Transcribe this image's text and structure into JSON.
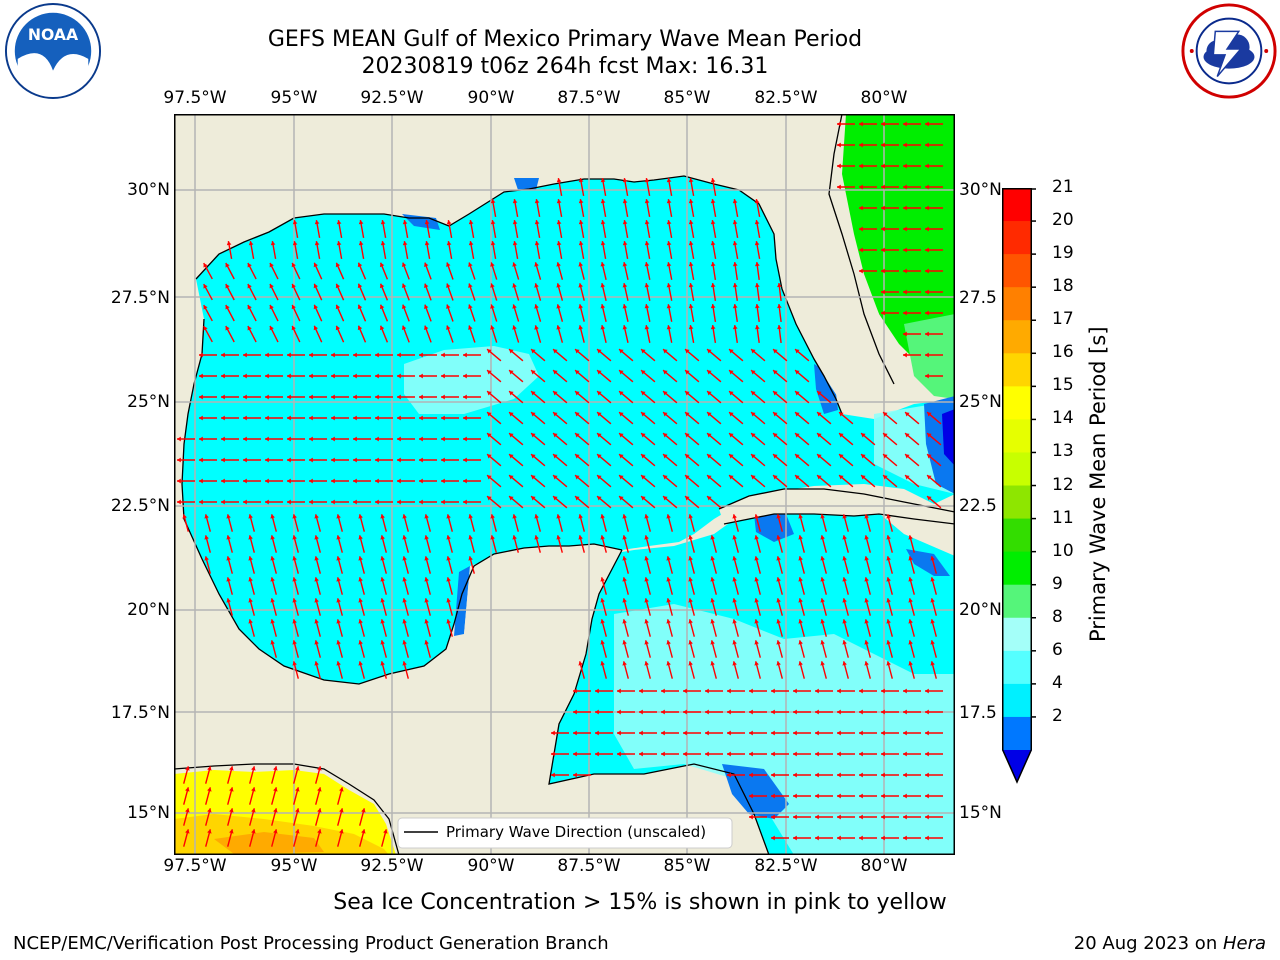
{
  "title_line1": "GEFS MEAN Gulf of Mexico Primary Wave Mean Period",
  "title_line2": "20230819 t06z 264h fcst   Max: 16.31",
  "logo_left": {
    "text": "NOAA",
    "icon": "noaa-logo-icon"
  },
  "logo_right": {
    "icon": "national-weather-service-logo-icon"
  },
  "lon_labels": [
    "97.5°W",
    "95°W",
    "92.5°W",
    "90°W",
    "87.5°W",
    "85°W",
    "82.5°W",
    "80°W"
  ],
  "lat_labels_left": [
    "30°N",
    "27.5°N",
    "25°N",
    "22.5°N",
    "20°N",
    "17.5°N",
    "15°N"
  ],
  "lat_labels_right": [
    "30°N",
    "27.5",
    "25°N",
    "22.5",
    "20°N",
    "17.5",
    "15°N"
  ],
  "legend_label": "Primary Wave Direction (unscaled)",
  "colorbar": {
    "label": "Primary Wave Mean Period [s]",
    "ticks": [
      "21",
      "20",
      "19",
      "18",
      "17",
      "16",
      "15",
      "14",
      "13",
      "12",
      "11",
      "10",
      "9",
      "8",
      "6",
      "4",
      "2"
    ],
    "colors": [
      "#ff0000",
      "#ff2a00",
      "#ff5500",
      "#ff8000",
      "#ffaa00",
      "#ffd500",
      "#ffff00",
      "#e6ff00",
      "#c8ff00",
      "#8ee600",
      "#33dd00",
      "#00ee00",
      "#55f57a",
      "#a4fff9",
      "#55ffff",
      "#00f0ff",
      "#0078ff"
    ],
    "under_color": "#0000e6"
  },
  "colors": {
    "land": "#eeecda",
    "ocean_main": "#00ffff",
    "ocean_light": "#8ffff9",
    "ocean_dark": "#0a78f0",
    "green": "#00ee00",
    "yellow": "#ffff00",
    "arrow": "#ff0000"
  },
  "note": "Sea Ice Concentration > 15% is shown in pink to yellow",
  "footer_left": "NCEP/EMC/Verification Post Processing Product Generation Branch",
  "footer_right_date": "20 Aug 2023 on ",
  "footer_right_host": "Hera"
}
